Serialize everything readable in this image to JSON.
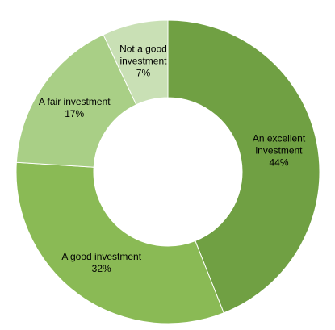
{
  "chart_data": {
    "type": "donut",
    "categories": [
      "An excellent investment",
      "A good investment",
      "A fair investment",
      "Not a good investment"
    ],
    "values": [
      44,
      32,
      17,
      7
    ],
    "value_labels": [
      "44%",
      "32%",
      "17%",
      "7%"
    ],
    "colors": [
      "#70a043",
      "#8aba55",
      "#a9cf86",
      "#c9e0b5"
    ]
  }
}
